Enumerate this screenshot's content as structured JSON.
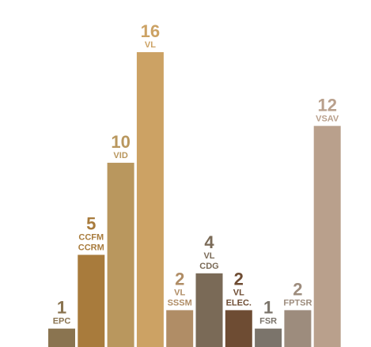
{
  "chart_data": {
    "type": "bar",
    "categories": [
      [
        "EPC"
      ],
      [
        "CCFM",
        "CCRM"
      ],
      [
        "VID"
      ],
      [
        "VL"
      ],
      [
        "VL",
        "SSSM"
      ],
      [
        "VL",
        "CDG"
      ],
      [
        "VL",
        "ELEC."
      ],
      [
        "FSR"
      ],
      [
        "FPTSR"
      ],
      [
        "VSAV"
      ]
    ],
    "values": [
      1,
      5,
      10,
      16,
      2,
      4,
      2,
      1,
      2,
      12
    ],
    "value_labels": [
      "1",
      "5",
      "10",
      "16",
      "2",
      "4",
      "2",
      "1",
      "2",
      "12"
    ],
    "colors": [
      "#8a7450",
      "#a87b3c",
      "#b9975e",
      "#cca264",
      "#b08d66",
      "#7a6a57",
      "#6e4c33",
      "#7b746b",
      "#9d8c7d",
      "#b9a08c"
    ],
    "ylim": [
      0,
      16
    ],
    "grid": false,
    "legend": "none"
  }
}
